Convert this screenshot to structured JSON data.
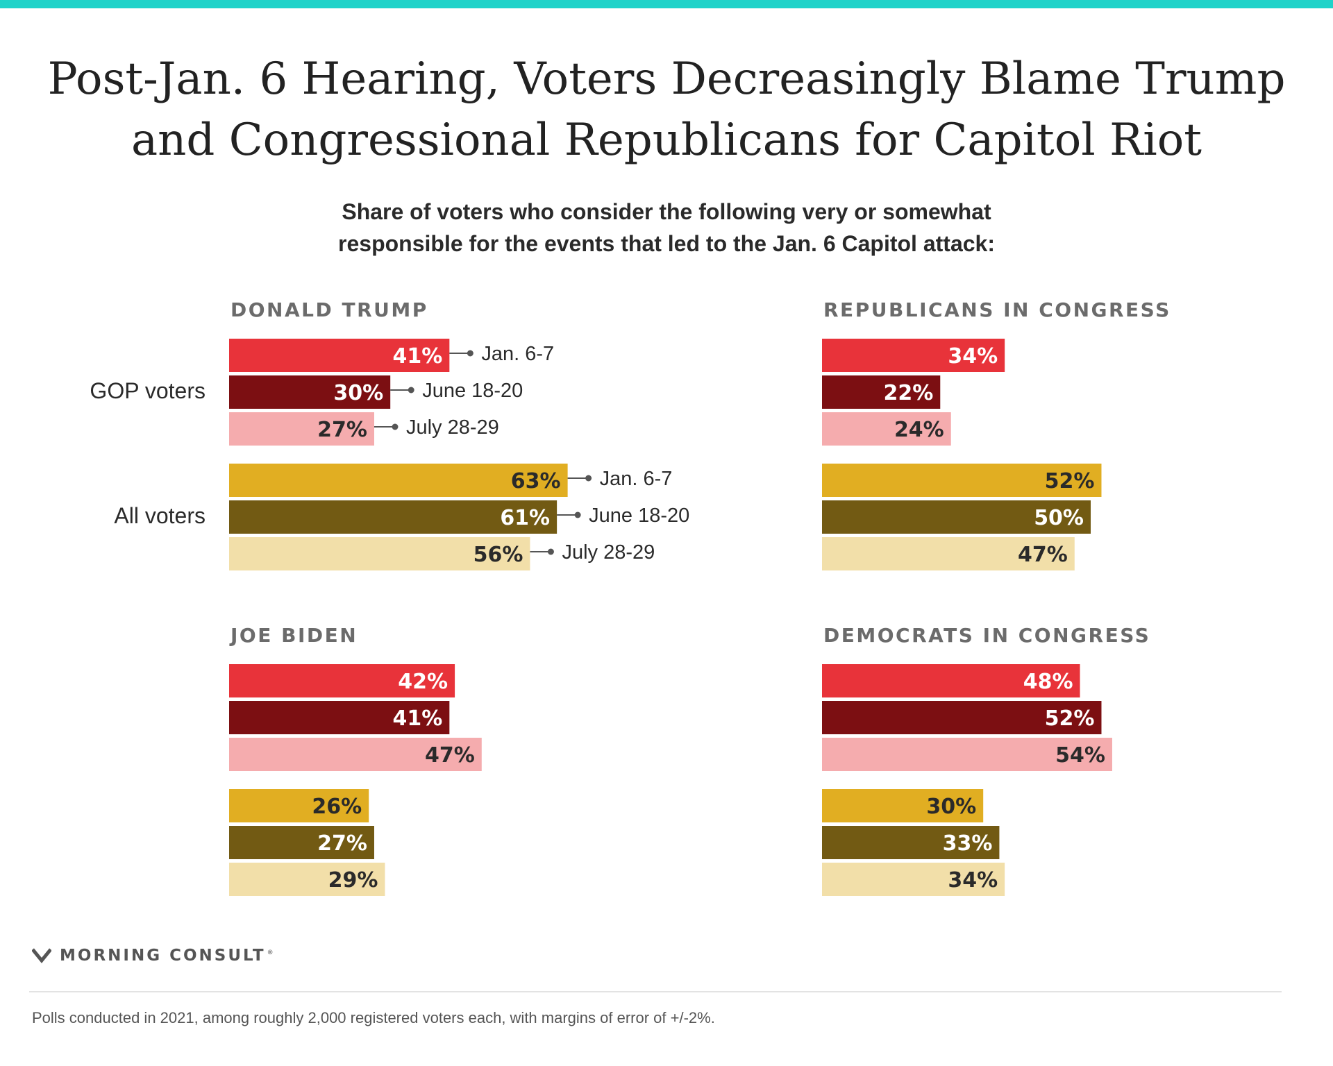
{
  "title_line1": "Post-Jan. 6 Hearing, Voters Decreasingly Blame Trump",
  "title_line2": "and Congressional Republicans for Capitol Riot",
  "subtitle_line1": "Share of voters who consider the following very or somewhat",
  "subtitle_line2": "responsible for the events that led to the Jan. 6 Capitol attack:",
  "logo_text": "MORNING CONSULT",
  "logo_reg": "®",
  "footnote": "Polls conducted in 2021, among roughly 2,000 registered voters each, with margins of error of +/-2%.",
  "colors": {
    "accent_strip": "#1fd3c9",
    "gop": [
      "#e8333a",
      "#7c0f12",
      "#f5acae"
    ],
    "all": [
      "#e1ae22",
      "#725a13",
      "#f2dfa9"
    ],
    "label_light": "#ffffff",
    "label_dark": "#2a2a2a",
    "panel_title": "#6b6b6b"
  },
  "chart_data": {
    "type": "bar",
    "orientation": "horizontal",
    "unit": "%",
    "xlim": [
      0,
      100
    ],
    "groups": [
      "GOP voters",
      "All voters"
    ],
    "dates": [
      "Jan. 6-7",
      "June 18-20",
      "July 28-29"
    ],
    "panels": [
      {
        "title": "DONALD TRUMP",
        "series": [
          {
            "group": "GOP voters",
            "values": [
              41,
              30,
              27
            ]
          },
          {
            "group": "All voters",
            "values": [
              63,
              61,
              56
            ]
          }
        ]
      },
      {
        "title": "REPUBLICANS IN CONGRESS",
        "series": [
          {
            "group": "GOP voters",
            "values": [
              34,
              22,
              24
            ]
          },
          {
            "group": "All voters",
            "values": [
              52,
              50,
              47
            ]
          }
        ]
      },
      {
        "title": "JOE BIDEN",
        "series": [
          {
            "group": "GOP voters",
            "values": [
              42,
              41,
              47
            ]
          },
          {
            "group": "All voters",
            "values": [
              26,
              27,
              29
            ]
          }
        ]
      },
      {
        "title": "DEMOCRATS IN CONGRESS",
        "series": [
          {
            "group": "GOP voters",
            "values": [
              48,
              52,
              54
            ]
          },
          {
            "group": "All voters",
            "values": [
              30,
              33,
              34
            ]
          }
        ]
      }
    ]
  }
}
